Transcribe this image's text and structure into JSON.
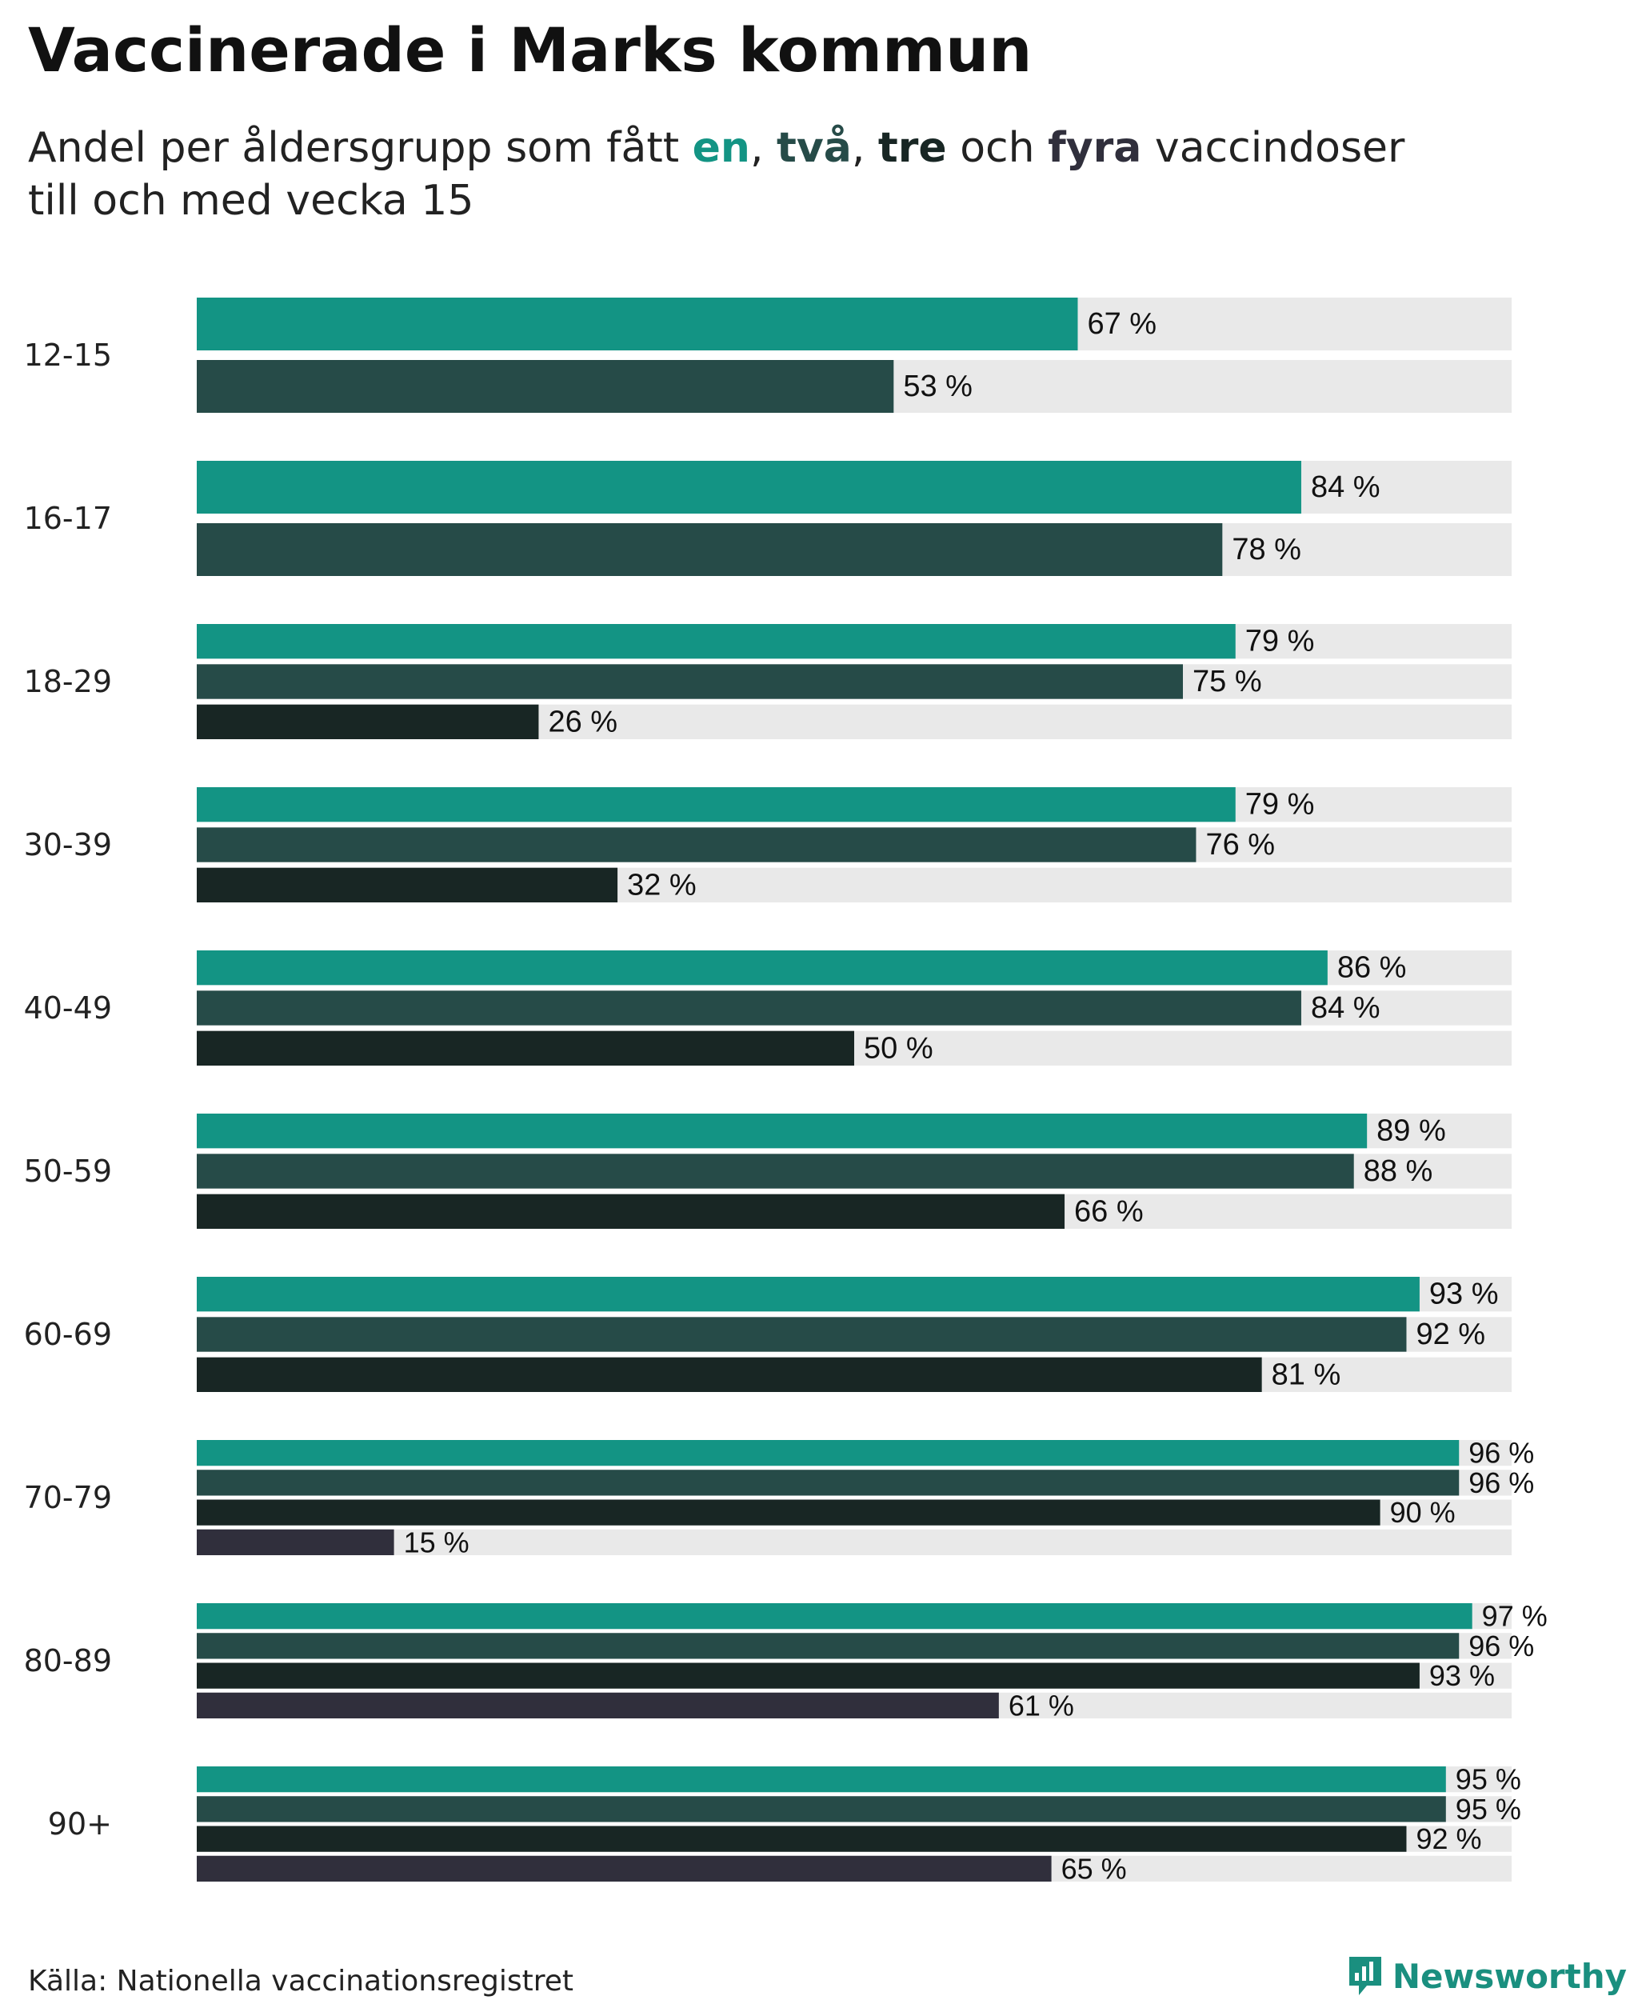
{
  "chart_data": {
    "type": "bar",
    "orientation": "horizontal",
    "title": "Vaccinerade i Marks kommun",
    "subtitle": {
      "prefix": "Andel per åldersgrupp som fått ",
      "en": "en",
      "sep1": ", ",
      "tva": "två",
      "sep2": ", ",
      "tre": "tre",
      "och": " och ",
      "fyra": "fyra",
      "suffix": " vaccindoser",
      "line2": "till och med vecka 15"
    },
    "value_suffix": " %",
    "xlim": [
      0,
      100
    ],
    "categories": [
      "12-15",
      "16-17",
      "18-29",
      "30-39",
      "40-49",
      "50-59",
      "60-69",
      "70-79",
      "80-89",
      "90+"
    ],
    "series": [
      {
        "name": "en",
        "color": "#139484",
        "values": [
          67,
          84,
          79,
          79,
          86,
          89,
          93,
          96,
          97,
          95
        ]
      },
      {
        "name": "två",
        "color": "#264b48",
        "values": [
          53,
          78,
          75,
          76,
          84,
          88,
          92,
          96,
          96,
          95
        ]
      },
      {
        "name": "tre",
        "color": "#182624",
        "values": [
          null,
          null,
          26,
          32,
          50,
          66,
          81,
          90,
          93,
          92
        ]
      },
      {
        "name": "fyra",
        "color": "#302f3c",
        "values": [
          null,
          null,
          null,
          null,
          null,
          null,
          null,
          15,
          61,
          65
        ]
      }
    ],
    "background_color": "#e9e9e9"
  },
  "source": "Källa: Nationella vaccinationsregistret",
  "brand": {
    "name": "Newsworthy",
    "color": "#1a8f7f"
  }
}
